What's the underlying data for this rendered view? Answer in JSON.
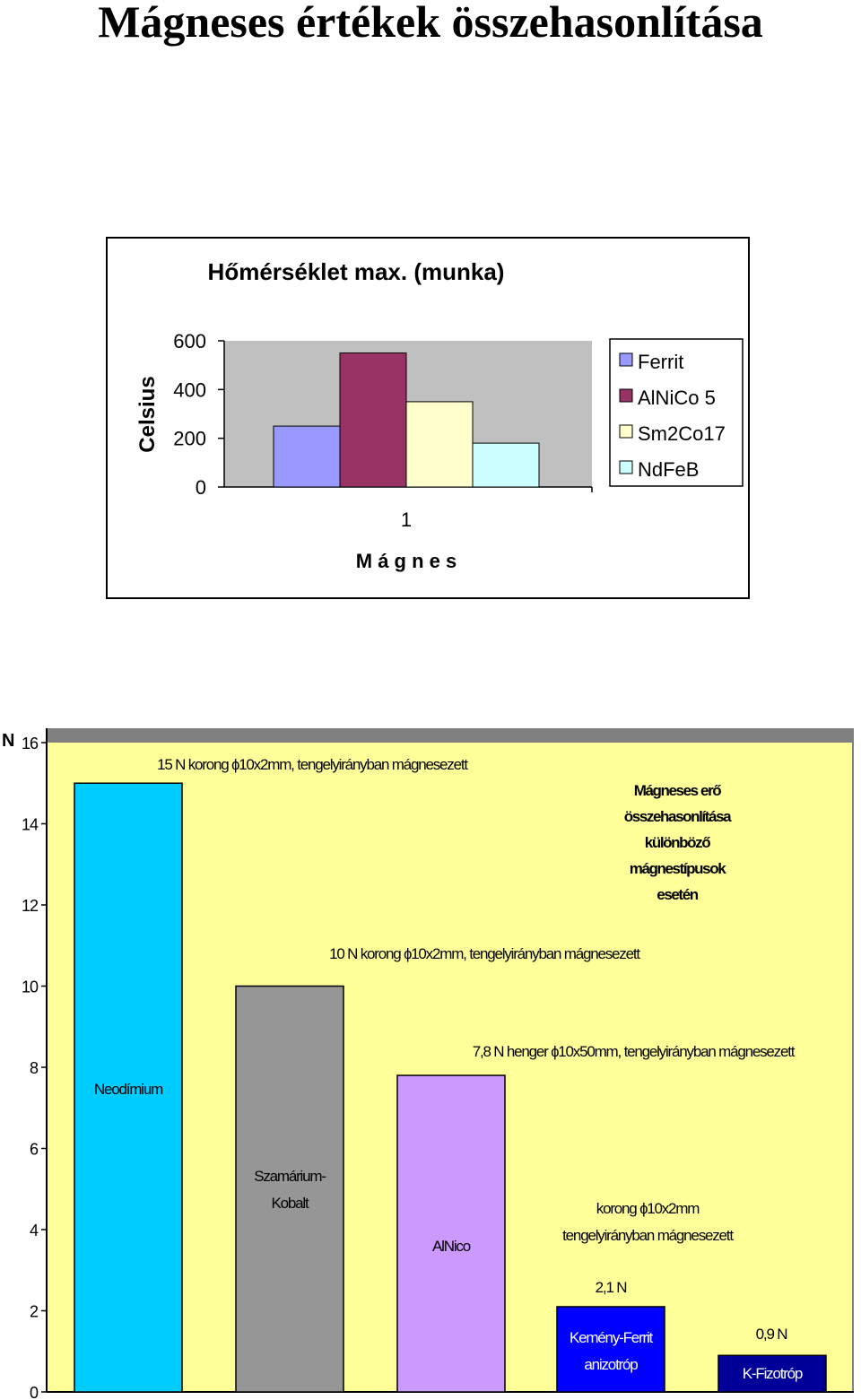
{
  "page": {
    "title": "Mágneses értékek összehasonlítása"
  },
  "chart_data": [
    {
      "type": "bar",
      "title": "Hőmérséklet max. (munka)",
      "xlabel": "M á g n e s",
      "ylabel": "Celsius",
      "categories": [
        "1"
      ],
      "yticks": [
        "0",
        "200",
        "400",
        "600"
      ],
      "ylim": [
        0,
        600
      ],
      "grid": false,
      "legend_position": "right",
      "plot_background": "#c0c0c0",
      "series": [
        {
          "name": "Ferrit",
          "values": [
            250
          ],
          "color": "#9999ff"
        },
        {
          "name": "AlNiCo 5",
          "values": [
            550
          ],
          "color": "#993366"
        },
        {
          "name": "Sm2Co17",
          "values": [
            350
          ],
          "color": "#ffffcc"
        },
        {
          "name": "NdFeB",
          "values": [
            180
          ],
          "color": "#ccffff"
        }
      ]
    },
    {
      "type": "bar",
      "ylabel": "N",
      "yticks": [
        "0",
        "2",
        "4",
        "6",
        "8",
        "10",
        "12",
        "14",
        "16"
      ],
      "ylim": [
        0,
        16
      ],
      "grid": false,
      "plot_background": "#ffff99",
      "annotation": [
        "Mágneses erő",
        "összehasonlítása",
        "különböző",
        "mágnestípusok",
        "esetén"
      ],
      "bars": [
        {
          "label": "Neodímium",
          "value": 15,
          "color": "#00ccff",
          "label_color": "#000000",
          "note": [
            "15 N korong ɸ10x2mm, tengelyirányban mágnesezett"
          ]
        },
        {
          "label": "Szamárium-Kobalt",
          "label_lines": [
            "Szamárium-",
            "Kobalt"
          ],
          "value": 10,
          "color": "#969696",
          "label_color": "#000000",
          "note": [
            "10 N korong ɸ10x2mm, tengelyirányban mágnesezett"
          ]
        },
        {
          "label": "AlNico",
          "value": 7.8,
          "color": "#cc99ff",
          "label_color": "#000000",
          "note": [
            "7,8 N henger ɸ10x50mm, tengelyirányban mágnesezett"
          ]
        },
        {
          "label": "Kemény-Ferrit anizotróp",
          "label_lines": [
            "Kemény-Ferrit",
            "anizotróp"
          ],
          "value": 2.1,
          "color": "#0000ff",
          "label_color": "#ffffff",
          "note": [
            "korong ɸ10x2mm",
            "tengelyirányban mágnesezett",
            "2,1 N"
          ]
        },
        {
          "label": "K-Fizotróp",
          "value": 0.9,
          "color": "#000099",
          "label_color": "#ffffff",
          "note": [
            "0,9 N"
          ]
        }
      ]
    }
  ]
}
